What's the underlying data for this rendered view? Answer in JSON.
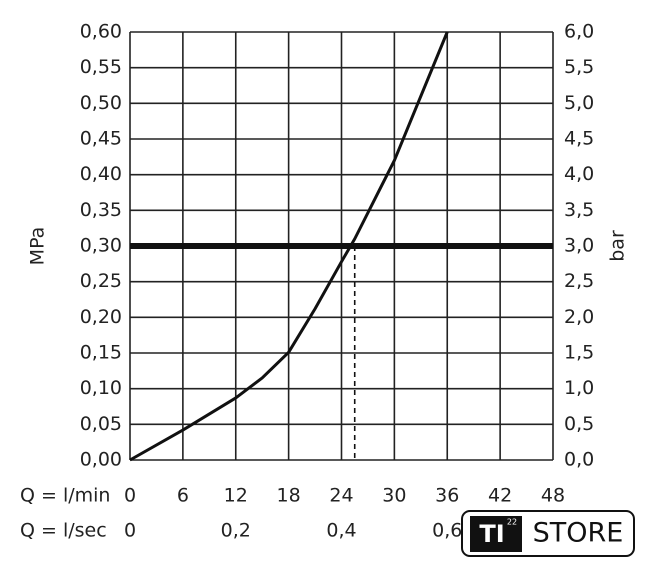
{
  "chart_data": {
    "type": "line",
    "x_label": "Q = l/min",
    "x2_label": "Q = l/sec",
    "y_label": "MPa",
    "y2_label": "bar",
    "x": [
      0,
      6,
      12,
      15,
      18,
      21,
      24,
      25.5,
      30,
      36
    ],
    "values": [
      0,
      0.042,
      0.087,
      0.115,
      0.151,
      0.212,
      0.278,
      0.31,
      0.42,
      0.6
    ],
    "color": "#111",
    "xlim": [
      0,
      48
    ],
    "xticks": [
      0,
      6,
      12,
      18,
      24,
      30,
      36,
      42,
      48
    ],
    "x2lim": [
      0,
      0.8
    ],
    "x2ticks": [
      0,
      {
        "value": 0.2,
        "label": "0,2"
      },
      {
        "value": 0.4,
        "label": "0,4"
      },
      {
        "value": 0.6,
        "label": "0,6"
      }
    ],
    "ylim": [
      0,
      0.6
    ],
    "yticks": [
      {
        "value": 0,
        "label": "0,00"
      },
      {
        "value": 0.05,
        "label": "0,05"
      },
      {
        "value": 0.1,
        "label": "0,10"
      },
      {
        "value": 0.15,
        "label": "0,15"
      },
      {
        "value": 0.2,
        "label": "0,20"
      },
      {
        "value": 0.25,
        "label": "0,25"
      },
      {
        "value": 0.3,
        "label": "0,30"
      },
      {
        "value": 0.35,
        "label": "0,35"
      },
      {
        "value": 0.4,
        "label": "0,40"
      },
      {
        "value": 0.45,
        "label": "0,45"
      },
      {
        "value": 0.5,
        "label": "0,50"
      },
      {
        "value": 0.55,
        "label": "0,55"
      },
      {
        "value": 0.6,
        "label": "0,60"
      }
    ],
    "y2lim": [
      0,
      6
    ],
    "y2ticks": [
      {
        "value": 0,
        "label": "0,0"
      },
      {
        "value": 0.5,
        "label": "0,5"
      },
      {
        "value": 1,
        "label": "1,0"
      },
      {
        "value": 1.5,
        "label": "1,5"
      },
      {
        "value": 2,
        "label": "2,0"
      },
      {
        "value": 2.5,
        "label": "2,5"
      },
      {
        "value": 3,
        "label": "3,0"
      },
      {
        "value": 3.5,
        "label": "3,5"
      },
      {
        "value": 4,
        "label": "4,0"
      },
      {
        "value": 4.5,
        "label": "4,5"
      },
      {
        "value": 5,
        "label": "5,0"
      },
      {
        "value": 5.5,
        "label": "5,5"
      },
      {
        "value": 6,
        "label": "6,0"
      }
    ],
    "hline": 0.3,
    "vline": 25.5,
    "grid": true
  },
  "logo": {
    "mark": "TI",
    "superscript": "22",
    "text": "STORE"
  }
}
